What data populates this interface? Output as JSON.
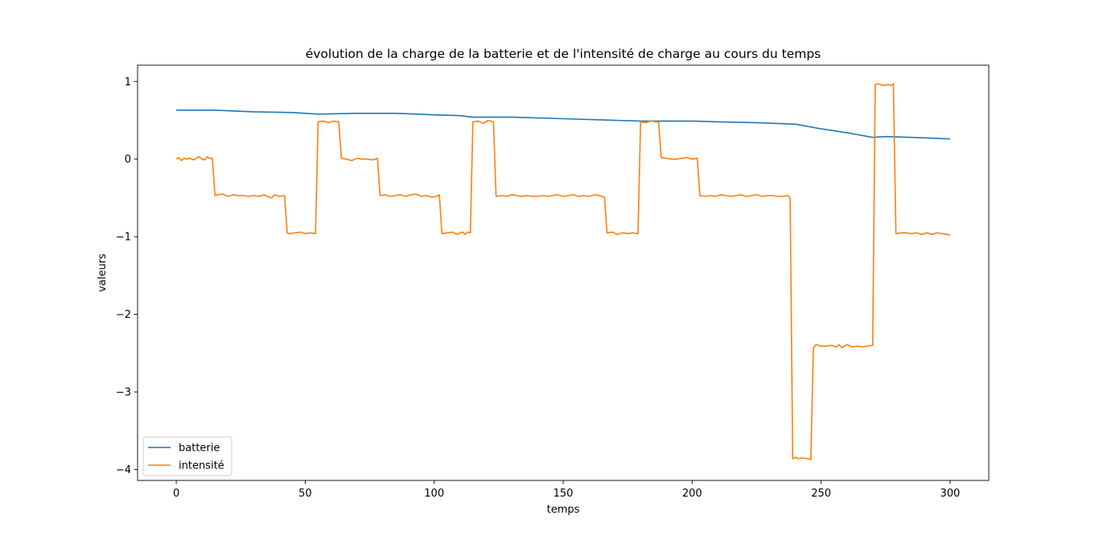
{
  "chart_data": {
    "type": "line",
    "title": "évolution de la charge de la batterie et de l'intensité de charge au cours du temps",
    "xlabel": "temps",
    "ylabel": "valeurs",
    "xlim": [
      -15,
      315
    ],
    "ylim": [
      -4.14,
      1.21
    ],
    "xticks": [
      0,
      50,
      100,
      150,
      200,
      250,
      300
    ],
    "yticks": [
      1,
      0,
      -1,
      -2,
      -3,
      -4
    ],
    "ytick_labels": [
      "1",
      "0",
      "−1",
      "−2",
      "−3",
      "−4"
    ],
    "grid": false,
    "legend_position": "lower-left",
    "series": [
      {
        "name": "batterie",
        "color": "#1f77b4",
        "points": [
          [
            0,
            0.63
          ],
          [
            10,
            0.63
          ],
          [
            15,
            0.63
          ],
          [
            30,
            0.61
          ],
          [
            45,
            0.6
          ],
          [
            55,
            0.58
          ],
          [
            70,
            0.59
          ],
          [
            85,
            0.59
          ],
          [
            100,
            0.57
          ],
          [
            110,
            0.56
          ],
          [
            115,
            0.54
          ],
          [
            130,
            0.54
          ],
          [
            150,
            0.52
          ],
          [
            170,
            0.5
          ],
          [
            180,
            0.49
          ],
          [
            200,
            0.49
          ],
          [
            210,
            0.48
          ],
          [
            225,
            0.47
          ],
          [
            240,
            0.45
          ],
          [
            250,
            0.39
          ],
          [
            260,
            0.34
          ],
          [
            270,
            0.28
          ],
          [
            275,
            0.29
          ],
          [
            285,
            0.28
          ],
          [
            300,
            0.26
          ]
        ]
      },
      {
        "name": "intensité",
        "color": "#ff7f0e",
        "points": [
          [
            0,
            0.0
          ],
          [
            1,
            0.02
          ],
          [
            2,
            -0.02
          ],
          [
            3,
            0.01
          ],
          [
            4,
            0.0
          ],
          [
            5,
            0.01
          ],
          [
            7,
            -0.01
          ],
          [
            8,
            0.02
          ],
          [
            9,
            0.03
          ],
          [
            10,
            0.0
          ],
          [
            11,
            -0.01
          ],
          [
            12,
            0.03
          ],
          [
            13,
            0.01
          ],
          [
            14,
            0.01
          ],
          [
            15,
            -0.47
          ],
          [
            16,
            -0.46
          ],
          [
            18,
            -0.45
          ],
          [
            20,
            -0.48
          ],
          [
            22,
            -0.46
          ],
          [
            24,
            -0.47
          ],
          [
            26,
            -0.47
          ],
          [
            28,
            -0.48
          ],
          [
            30,
            -0.47
          ],
          [
            32,
            -0.48
          ],
          [
            34,
            -0.46
          ],
          [
            36,
            -0.49
          ],
          [
            37,
            -0.5
          ],
          [
            38,
            -0.46
          ],
          [
            40,
            -0.48
          ],
          [
            42,
            -0.47
          ],
          [
            43,
            -0.95
          ],
          [
            44,
            -0.96
          ],
          [
            46,
            -0.95
          ],
          [
            48,
            -0.94
          ],
          [
            50,
            -0.96
          ],
          [
            52,
            -0.95
          ],
          [
            54,
            -0.96
          ],
          [
            55,
            0.48
          ],
          [
            57,
            0.49
          ],
          [
            59,
            0.47
          ],
          [
            61,
            0.49
          ],
          [
            63,
            0.48
          ],
          [
            64,
            0.01
          ],
          [
            66,
            0.0
          ],
          [
            68,
            -0.02
          ],
          [
            70,
            0.01
          ],
          [
            72,
            0.0
          ],
          [
            74,
            0.0
          ],
          [
            76,
            -0.01
          ],
          [
            78,
            0.01
          ],
          [
            79,
            -0.47
          ],
          [
            81,
            -0.46
          ],
          [
            83,
            -0.48
          ],
          [
            85,
            -0.47
          ],
          [
            87,
            -0.46
          ],
          [
            89,
            -0.48
          ],
          [
            91,
            -0.46
          ],
          [
            93,
            -0.45
          ],
          [
            95,
            -0.48
          ],
          [
            97,
            -0.47
          ],
          [
            99,
            -0.49
          ],
          [
            101,
            -0.48
          ],
          [
            102,
            -0.46
          ],
          [
            103,
            -0.96
          ],
          [
            105,
            -0.95
          ],
          [
            107,
            -0.94
          ],
          [
            109,
            -0.97
          ],
          [
            110,
            -0.95
          ],
          [
            111,
            -0.94
          ],
          [
            112,
            -0.97
          ],
          [
            113,
            -0.94
          ],
          [
            114,
            -0.95
          ],
          [
            115,
            0.48
          ],
          [
            117,
            0.49
          ],
          [
            119,
            0.46
          ],
          [
            121,
            0.5
          ],
          [
            123,
            0.48
          ],
          [
            124,
            -0.48
          ],
          [
            126,
            -0.47
          ],
          [
            128,
            -0.48
          ],
          [
            130,
            -0.46
          ],
          [
            132,
            -0.47
          ],
          [
            134,
            -0.48
          ],
          [
            136,
            -0.47
          ],
          [
            138,
            -0.48
          ],
          [
            140,
            -0.48
          ],
          [
            142,
            -0.47
          ],
          [
            144,
            -0.48
          ],
          [
            146,
            -0.47
          ],
          [
            148,
            -0.46
          ],
          [
            150,
            -0.48
          ],
          [
            152,
            -0.47
          ],
          [
            154,
            -0.46
          ],
          [
            156,
            -0.48
          ],
          [
            158,
            -0.47
          ],
          [
            160,
            -0.48
          ],
          [
            162,
            -0.46
          ],
          [
            164,
            -0.47
          ],
          [
            166,
            -0.49
          ],
          [
            167,
            -0.95
          ],
          [
            169,
            -0.94
          ],
          [
            171,
            -0.97
          ],
          [
            173,
            -0.95
          ],
          [
            175,
            -0.96
          ],
          [
            177,
            -0.95
          ],
          [
            179,
            -0.96
          ],
          [
            180,
            0.48
          ],
          [
            182,
            0.47
          ],
          [
            184,
            0.49
          ],
          [
            186,
            0.48
          ],
          [
            187,
            0.48
          ],
          [
            188,
            0.02
          ],
          [
            190,
            0.01
          ],
          [
            192,
            0.0
          ],
          [
            194,
            0.0
          ],
          [
            196,
            0.01
          ],
          [
            198,
            0.02
          ],
          [
            200,
            0.0
          ],
          [
            202,
            0.01
          ],
          [
            203,
            -0.47
          ],
          [
            205,
            -0.48
          ],
          [
            207,
            -0.47
          ],
          [
            209,
            -0.48
          ],
          [
            211,
            -0.46
          ],
          [
            213,
            -0.47
          ],
          [
            215,
            -0.48
          ],
          [
            217,
            -0.47
          ],
          [
            219,
            -0.46
          ],
          [
            221,
            -0.48
          ],
          [
            223,
            -0.47
          ],
          [
            225,
            -0.46
          ],
          [
            227,
            -0.48
          ],
          [
            229,
            -0.47
          ],
          [
            231,
            -0.47
          ],
          [
            233,
            -0.48
          ],
          [
            235,
            -0.48
          ],
          [
            237,
            -0.47
          ],
          [
            238,
            -0.5
          ],
          [
            239,
            -3.86
          ],
          [
            240,
            -3.84
          ],
          [
            241,
            -3.86
          ],
          [
            243,
            -3.85
          ],
          [
            245,
            -3.86
          ],
          [
            246,
            -3.87
          ],
          [
            247,
            -2.43
          ],
          [
            248,
            -2.39
          ],
          [
            250,
            -2.41
          ],
          [
            252,
            -2.41
          ],
          [
            254,
            -2.4
          ],
          [
            256,
            -2.42
          ],
          [
            257,
            -2.39
          ],
          [
            258,
            -2.43
          ],
          [
            260,
            -2.39
          ],
          [
            262,
            -2.42
          ],
          [
            264,
            -2.41
          ],
          [
            266,
            -2.42
          ],
          [
            268,
            -2.41
          ],
          [
            270,
            -2.4
          ],
          [
            271,
            0.96
          ],
          [
            272,
            0.97
          ],
          [
            274,
            0.95
          ],
          [
            276,
            0.96
          ],
          [
            277,
            0.95
          ],
          [
            278,
            0.97
          ],
          [
            279,
            -0.96
          ],
          [
            281,
            -0.95
          ],
          [
            283,
            -0.95
          ],
          [
            285,
            -0.96
          ],
          [
            287,
            -0.95
          ],
          [
            289,
            -0.97
          ],
          [
            291,
            -0.95
          ],
          [
            293,
            -0.97
          ],
          [
            295,
            -0.95
          ],
          [
            297,
            -0.96
          ],
          [
            299,
            -0.97
          ],
          [
            300,
            -0.98
          ]
        ]
      }
    ]
  }
}
